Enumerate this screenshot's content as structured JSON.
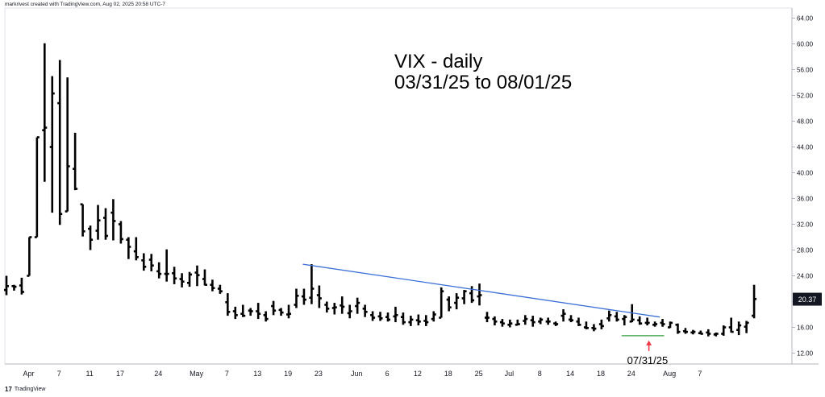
{
  "header": {
    "text": "markrivest created with TradingView.com, Aug 02, 2025 20:58 UTC-7"
  },
  "footer": {
    "brand": "TradingView",
    "mark": "17"
  },
  "chart_data": {
    "type": "ohlc",
    "title_lines": [
      "VIX - daily",
      "03/31/25 to 08/01/25"
    ],
    "ylim": [
      10,
      64
    ],
    "yticks": [
      "64.00",
      "60.00",
      "56.00",
      "52.00",
      "48.00",
      "44.00",
      "40.00",
      "36.00",
      "32.00",
      "28.00",
      "24.00",
      "20.00",
      "16.00",
      "12.00"
    ],
    "ytick_values": [
      64,
      60,
      56,
      52,
      48,
      44,
      40,
      36,
      32,
      28,
      24,
      20,
      16,
      12
    ],
    "xticks": [
      {
        "label": "Apr",
        "bar": 1
      },
      {
        "label": "7",
        "bar": 5
      },
      {
        "label": "11",
        "bar": 9
      },
      {
        "label": "17",
        "bar": 13
      },
      {
        "label": "24",
        "bar": 18
      },
      {
        "label": "May",
        "bar": 23
      },
      {
        "label": "7",
        "bar": 27
      },
      {
        "label": "13",
        "bar": 31
      },
      {
        "label": "19",
        "bar": 35
      },
      {
        "label": "23",
        "bar": 39
      },
      {
        "label": "Jun",
        "bar": 44
      },
      {
        "label": "6",
        "bar": 48
      },
      {
        "label": "12",
        "bar": 52
      },
      {
        "label": "18",
        "bar": 56
      },
      {
        "label": "25",
        "bar": 60
      },
      {
        "label": "Jul",
        "bar": 64
      },
      {
        "label": "8",
        "bar": 68
      },
      {
        "label": "14",
        "bar": 72
      },
      {
        "label": "18",
        "bar": 76
      },
      {
        "label": "24",
        "bar": 80
      },
      {
        "label": "Aug",
        "bar": 85
      },
      {
        "label": "7",
        "bar": 89
      }
    ],
    "last_price": "20.37",
    "annotation": {
      "label": "07/31/25",
      "bar": 84,
      "value": 14.7
    },
    "trendline": {
      "start": {
        "bar": 38,
        "value": 25.8
      },
      "end": {
        "bar": 85,
        "value": 17.6
      }
    },
    "support_segment": {
      "start": {
        "bar": 80,
        "value": 14.7
      },
      "end": {
        "bar": 86,
        "value": 14.7
      }
    },
    "bars": [
      [
        21.8,
        24.0,
        21.0,
        22.4
      ],
      [
        22.4,
        22.6,
        21.7,
        22.3
      ],
      [
        22.5,
        23.7,
        21.1,
        21.5
      ],
      [
        24.0,
        26.3,
        24.9,
        30.0
      ],
      [
        30.0,
        30.1,
        30.0,
        45.5
      ],
      [
        46.6,
        60.1,
        38.6,
        47.0
      ],
      [
        44.0,
        55.0,
        33.8,
        52.3
      ],
      [
        50.8,
        57.5,
        31.9,
        33.6
      ],
      [
        34.0,
        54.8,
        34.5,
        41.0
      ],
      [
        40.6,
        46.2,
        37.3,
        37.5
      ],
      [
        35.1,
        35.1,
        30.1,
        30.9
      ],
      [
        31.3,
        31.8,
        28.0,
        29.6
      ],
      [
        31.0,
        35.0,
        29.6,
        32.6
      ],
      [
        33.0,
        34.5,
        29.6,
        30.2
      ],
      [
        33.8,
        35.9,
        29.5,
        32.5
      ],
      [
        32.0,
        32.5,
        29.0,
        29.7
      ],
      [
        29.6,
        30.0,
        26.6,
        28.5
      ],
      [
        27.8,
        30.0,
        26.4,
        26.9
      ],
      [
        26.4,
        27.5,
        24.8,
        25.4
      ],
      [
        26.5,
        27.4,
        24.7,
        25.6
      ],
      [
        24.7,
        26.1,
        23.6,
        24.3
      ],
      [
        24.3,
        28.1,
        23.1,
        24.3
      ],
      [
        24.4,
        25.4,
        22.7,
        23.6
      ],
      [
        23.5,
        24.4,
        22.2,
        23.1
      ],
      [
        22.9,
        24.6,
        22.3,
        24.2
      ],
      [
        24.5,
        25.6,
        22.4,
        24.1
      ],
      [
        23.5,
        25.0,
        22.5,
        22.6
      ],
      [
        22.6,
        23.4,
        21.6,
        22.1
      ],
      [
        22.0,
        22.6,
        21.2,
        21.6
      ],
      [
        19.9,
        21.3,
        17.8,
        18.4
      ],
      [
        18.5,
        19.2,
        17.3,
        17.9
      ],
      [
        18.1,
        19.5,
        17.6,
        17.8
      ],
      [
        18.6,
        19.0,
        17.8,
        18.5
      ],
      [
        18.5,
        19.8,
        17.3,
        18.1
      ],
      [
        17.9,
        18.5,
        16.9,
        17.3
      ],
      [
        19.3,
        20.1,
        17.9,
        18.6
      ],
      [
        18.7,
        19.0,
        17.8,
        18.3
      ],
      [
        18.0,
        19.5,
        17.4,
        18.1
      ],
      [
        19.5,
        22.0,
        19.0,
        20.9
      ],
      [
        20.8,
        22.0,
        19.5,
        20.3
      ],
      [
        20.6,
        25.8,
        19.6,
        22.0
      ],
      [
        21.0,
        22.5,
        19.0,
        20.5
      ],
      [
        19.5,
        20.0,
        18.3,
        18.9
      ],
      [
        19.0,
        19.8,
        18.0,
        19.1
      ],
      [
        19.4,
        20.8,
        18.1,
        19.2
      ],
      [
        18.2,
        19.5,
        17.4,
        18.5
      ],
      [
        19.3,
        20.6,
        18.1,
        19.8
      ],
      [
        18.9,
        19.5,
        17.6,
        18.4
      ],
      [
        17.9,
        18.5,
        17.0,
        17.5
      ],
      [
        17.7,
        18.4,
        17.0,
        17.4
      ],
      [
        17.6,
        18.3,
        16.9,
        17.2
      ],
      [
        17.7,
        19.2,
        16.8,
        17.9
      ],
      [
        17.6,
        18.3,
        16.4,
        16.8
      ],
      [
        16.8,
        17.8,
        16.2,
        17.2
      ],
      [
        17.1,
        18.0,
        16.3,
        16.9
      ],
      [
        17.0,
        17.9,
        16.2,
        16.8
      ],
      [
        17.3,
        18.5,
        16.9,
        18.0
      ],
      [
        17.5,
        22.2,
        19.0,
        21.6
      ],
      [
        20.3,
        20.8,
        18.5,
        19.1
      ],
      [
        19.8,
        21.3,
        18.8,
        20.6
      ],
      [
        20.5,
        21.8,
        19.6,
        21.6
      ],
      [
        21.3,
        22.4,
        19.8,
        20.2
      ],
      [
        20.8,
        22.8,
        19.4,
        21.0
      ],
      [
        17.5,
        18.4,
        16.8,
        17.5
      ],
      [
        17.3,
        17.7,
        16.3,
        16.9
      ],
      [
        16.8,
        17.3,
        16.1,
        16.6
      ],
      [
        16.4,
        17.2,
        16.0,
        16.6
      ],
      [
        16.4,
        17.2,
        16.3,
        16.5
      ],
      [
        17.0,
        17.9,
        16.4,
        17.3
      ],
      [
        17.1,
        17.8,
        16.1,
        16.8
      ],
      [
        16.9,
        17.5,
        16.5,
        17.2
      ],
      [
        16.9,
        17.5,
        16.4,
        16.9
      ],
      [
        16.6,
        16.9,
        16.2,
        16.5
      ],
      [
        17.8,
        18.8,
        16.9,
        18.1
      ],
      [
        17.2,
        17.9,
        16.8,
        17.1
      ],
      [
        16.9,
        17.5,
        16.2,
        16.4
      ],
      [
        16.0,
        16.9,
        15.7,
        15.9
      ],
      [
        15.9,
        16.5,
        15.4,
        15.8
      ],
      [
        16.5,
        17.2,
        15.7,
        16.2
      ],
      [
        17.4,
        18.6,
        16.9,
        17.9
      ],
      [
        17.7,
        18.4,
        16.9,
        17.2
      ],
      [
        17.3,
        17.9,
        16.3,
        17.6
      ],
      [
        16.9,
        19.6,
        16.8,
        17.2
      ],
      [
        17.1,
        17.7,
        16.4,
        16.6
      ],
      [
        16.7,
        17.5,
        16.3,
        16.7
      ],
      [
        16.4,
        16.9,
        16.1,
        16.5
      ],
      [
        16.7,
        17.3,
        16.1,
        16.5
      ],
      [
        16.0,
        16.9,
        15.9,
        16.7
      ],
      [
        16.4,
        16.6,
        15.0,
        15.3
      ],
      [
        15.4,
        15.9,
        15.0,
        15.3
      ],
      [
        15.2,
        15.6,
        14.9,
        15.3
      ],
      [
        15.1,
        15.5,
        14.9,
        15.0
      ],
      [
        15.2,
        15.7,
        14.6,
        15.0
      ],
      [
        14.9,
        15.2,
        14.6,
        15.0
      ],
      [
        15.0,
        16.3,
        14.7,
        16.0
      ],
      [
        16.0,
        17.5,
        15.2,
        15.3
      ],
      [
        15.6,
        16.9,
        14.8,
        16.3
      ],
      [
        16.1,
        17.0,
        15.1,
        16.7
      ],
      [
        17.8,
        22.6,
        17.4,
        20.4
      ]
    ]
  }
}
